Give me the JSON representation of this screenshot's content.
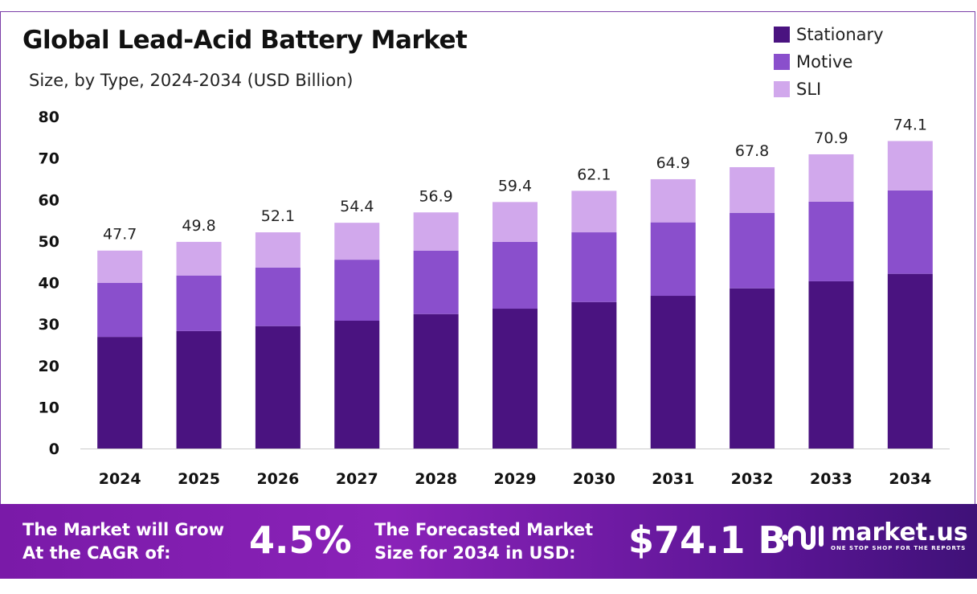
{
  "chart_data": {
    "type": "bar",
    "stacked": true,
    "title": "Global Lead-Acid Battery Market",
    "subtitle": "Size, by Type, 2024-2034 (USD Billion)",
    "categories": [
      "2024",
      "2025",
      "2026",
      "2027",
      "2028",
      "2029",
      "2030",
      "2031",
      "2032",
      "2033",
      "2034"
    ],
    "series": [
      {
        "name": "Stationary",
        "color": "#4a1380",
        "values": [
          26.9,
          28.3,
          29.5,
          30.8,
          32.4,
          33.7,
          35.3,
          36.8,
          38.6,
          40.3,
          42.1
        ]
      },
      {
        "name": "Motive",
        "color": "#8a4fcc",
        "values": [
          13.0,
          13.4,
          14.1,
          14.7,
          15.3,
          16.1,
          16.8,
          17.7,
          18.2,
          19.2,
          20.1
        ]
      },
      {
        "name": "SLI",
        "color": "#d1a8ec",
        "values": [
          7.8,
          8.1,
          8.5,
          8.9,
          9.2,
          9.6,
          10.0,
          10.4,
          11.0,
          11.4,
          11.9
        ]
      }
    ],
    "totals": [
      "47.7",
      "49.8",
      "52.1",
      "54.4",
      "56.9",
      "59.4",
      "62.1",
      "64.9",
      "67.8",
      "70.9",
      "74.1"
    ],
    "ylim": [
      0,
      80
    ],
    "yticks": [
      "0",
      "10",
      "20",
      "30",
      "40",
      "50",
      "60",
      "70",
      "80"
    ],
    "grid": false,
    "legend_position": "top-right"
  },
  "footer": {
    "cagr_label_1": "The Market will Grow",
    "cagr_label_2": "At the CAGR of:",
    "cagr_value": "4.5%",
    "forecast_label_1": "The Forecasted Market",
    "forecast_label_2": "Size for 2034 in USD:",
    "forecast_value": "$74.1 B",
    "logo_name": "market.us",
    "logo_tagline": "ONE STOP SHOP FOR THE REPORTS"
  }
}
